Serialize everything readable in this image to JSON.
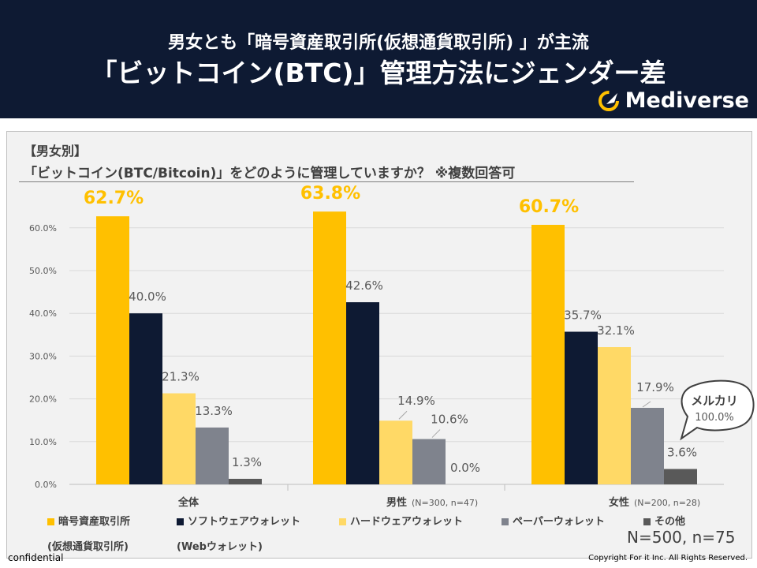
{
  "header": {
    "subtitle": "男女とも「暗号資産取引所(仮想通貨取引所) 」が主流",
    "title": "「ビットコイン(BTC)」管理方法にジェンダー差",
    "logo": "Mediverse"
  },
  "chart_title_1": "【男女別】",
  "chart_title_2": "「ビットコイン(BTC/Bitcoin)」をどのように管理していますか？ ※複数回答可",
  "callout": {
    "title": "メルカリ",
    "value": "100.0%"
  },
  "footer": {
    "nn": "N=500, n=75",
    "confidential": "confidential",
    "copyright": "Copyright For it Inc. All Rights Reserved."
  },
  "legend": [
    {
      "label": "暗号資産取引所",
      "sub": "(仮想通貨取引所)"
    },
    {
      "label": "ソフトウェアウォレット",
      "sub": "(Webウォレット)"
    },
    {
      "label": "ハードウェアウォレット",
      "sub": ""
    },
    {
      "label": "ペーパーウォレット",
      "sub": ""
    },
    {
      "label": "その他",
      "sub": ""
    }
  ],
  "chart_data": {
    "type": "bar",
    "title": "「ビットコイン(BTC/Bitcoin)」をどのように管理していますか？ ※複数回答可",
    "categories": [
      "全体",
      "男性",
      "女性"
    ],
    "category_notes": [
      "",
      "(N=300, n=47)",
      "(N=200, n=28)"
    ],
    "ylim": [
      0,
      65
    ],
    "yticks": [
      "0.0%",
      "10.0%",
      "20.0%",
      "30.0%",
      "40.0%",
      "50.0%",
      "60.0%"
    ],
    "grid": true,
    "series": [
      {
        "name": "暗号資産取引所(仮想通貨取引所)",
        "color": "#ffc000",
        "values": [
          62.7,
          63.8,
          60.7
        ],
        "labels": [
          "62.7%",
          "63.8%",
          "60.7%"
        ]
      },
      {
        "name": "ソフトウェアウォレット(Webウォレット)",
        "color": "#0e1a33",
        "values": [
          40.0,
          42.6,
          35.7
        ],
        "labels": [
          "40.0%",
          "42.6%",
          "35.7%"
        ]
      },
      {
        "name": "ハードウェアウォレット",
        "color": "#ffd966",
        "values": [
          21.3,
          14.9,
          32.1
        ],
        "labels": [
          "21.3%",
          "14.9%",
          "32.1%"
        ]
      },
      {
        "name": "ペーパーウォレット",
        "color": "#7f838d",
        "values": [
          13.3,
          10.6,
          17.9
        ],
        "labels": [
          "13.3%",
          "10.6%",
          "17.9%"
        ]
      },
      {
        "name": "その他",
        "color": "#595959",
        "values": [
          1.3,
          0.0,
          3.6
        ],
        "labels": [
          "1.3%",
          "0.0%",
          "3.6%"
        ]
      }
    ]
  }
}
